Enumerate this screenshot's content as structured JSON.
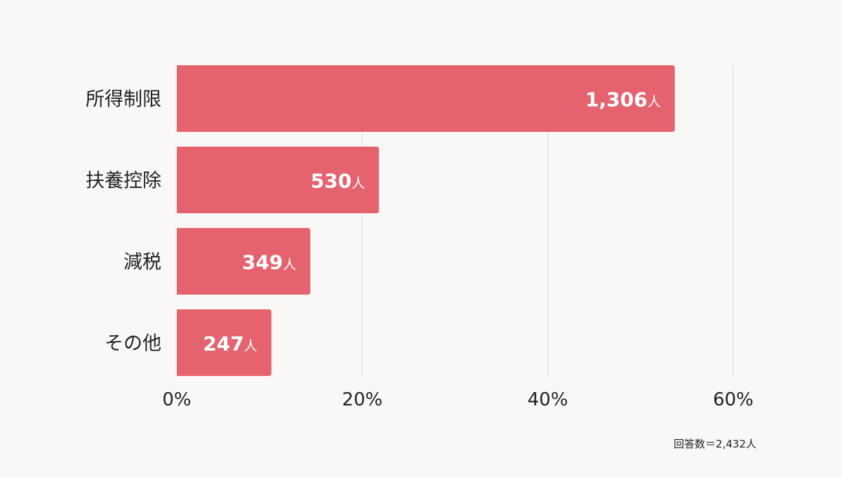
{
  "chart_data": {
    "type": "bar",
    "orientation": "horizontal",
    "categories": [
      "所得制限",
      "扶養控除",
      "減税",
      "その他"
    ],
    "values": [
      53.7,
      21.8,
      14.4,
      10.2
    ],
    "value_unit": "%",
    "data_labels": [
      "1,306人",
      "530人",
      "349人",
      "247人"
    ],
    "counts": [
      1306,
      530,
      349,
      247
    ],
    "xlim": [
      0,
      60
    ],
    "x_ticks": [
      "0%",
      "20%",
      "40%",
      "60%"
    ],
    "grid": "vertical",
    "bar_color": "#e5636e",
    "note": "回答数＝2,432人"
  }
}
